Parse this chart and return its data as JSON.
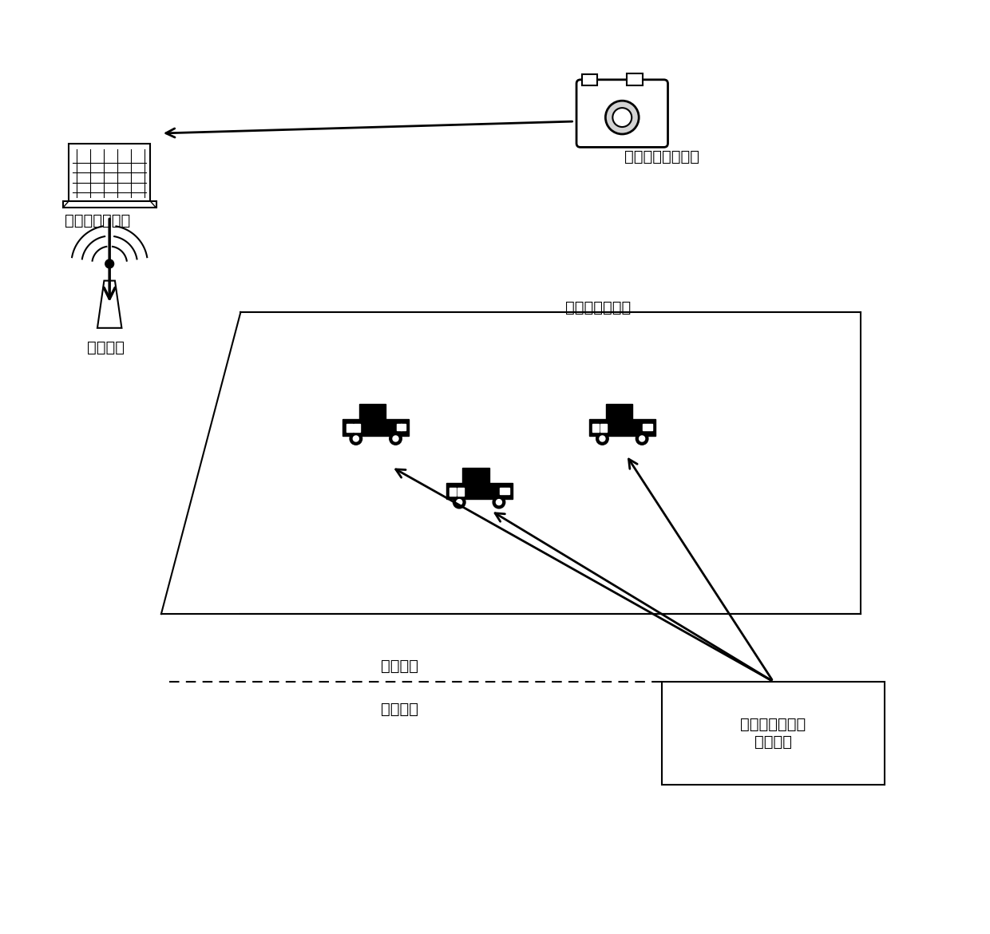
{
  "bg_color": "#ffffff",
  "text_color": "#000000",
  "label_laptop": "上位机定位模块",
  "label_camera": "实验环境采集模块",
  "label_robots": "多移动机器人组",
  "label_comm": "通信模块",
  "label_env": "环境信息",
  "label_state": "状态信息",
  "label_algo": "领航者跟随编队\n控制算法",
  "figsize": [
    12.4,
    11.7
  ],
  "dpi": 100
}
